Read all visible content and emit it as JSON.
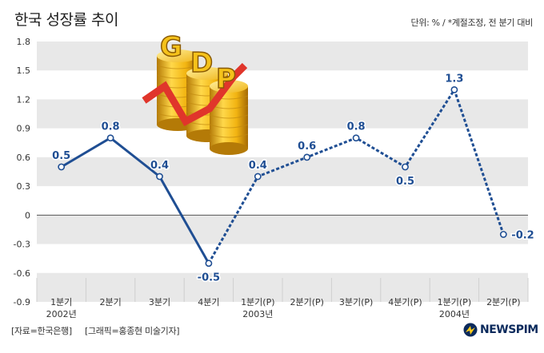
{
  "header": {
    "title": "한국 성장률 추이",
    "unit_note": "단위: % / *계절조정, 전 분기 대비"
  },
  "footer": {
    "source": "[자료=한국은행]",
    "credit": "[그래픽=홍종현 미술기자]",
    "logo_text": "NEWSPIM"
  },
  "colors": {
    "line": "#1f4e93",
    "band": "#e8e8e8",
    "marker_fill": "#ffffff",
    "label": "#1f4e93"
  },
  "chart_data": {
    "type": "line",
    "title": "한국 성장률 추이",
    "categories": [
      "1분기",
      "2분기",
      "3분기",
      "4분기",
      "1분기(P)",
      "2분기(P)",
      "3분기(P)",
      "4분기(P)",
      "1분기(P)",
      "2분기(P)"
    ],
    "year_labels": [
      {
        "index": 0,
        "label": "2002년"
      },
      {
        "index": 4,
        "label": "2003년"
      },
      {
        "index": 8,
        "label": "2004년"
      }
    ],
    "values": [
      0.5,
      0.8,
      0.4,
      -0.5,
      0.4,
      0.6,
      0.8,
      0.5,
      1.3,
      -0.2
    ],
    "data_labels": [
      "0.5",
      "0.8",
      "0.4",
      "-0.5",
      "0.4",
      "0.6",
      "0.8",
      "0.5",
      "1.3",
      "-0.2"
    ],
    "solid_until_index": 4,
    "yticks": [
      "1.8",
      "1.5",
      "1.2",
      "0.9",
      "0.6",
      "0.3",
      "0",
      "-0.3",
      "-0.6",
      "-0.9"
    ],
    "ylim": [
      -0.9,
      1.8
    ],
    "ylabel": "",
    "xlabel": "",
    "grid": "alternating horizontal bands",
    "illustration": "GDP"
  }
}
